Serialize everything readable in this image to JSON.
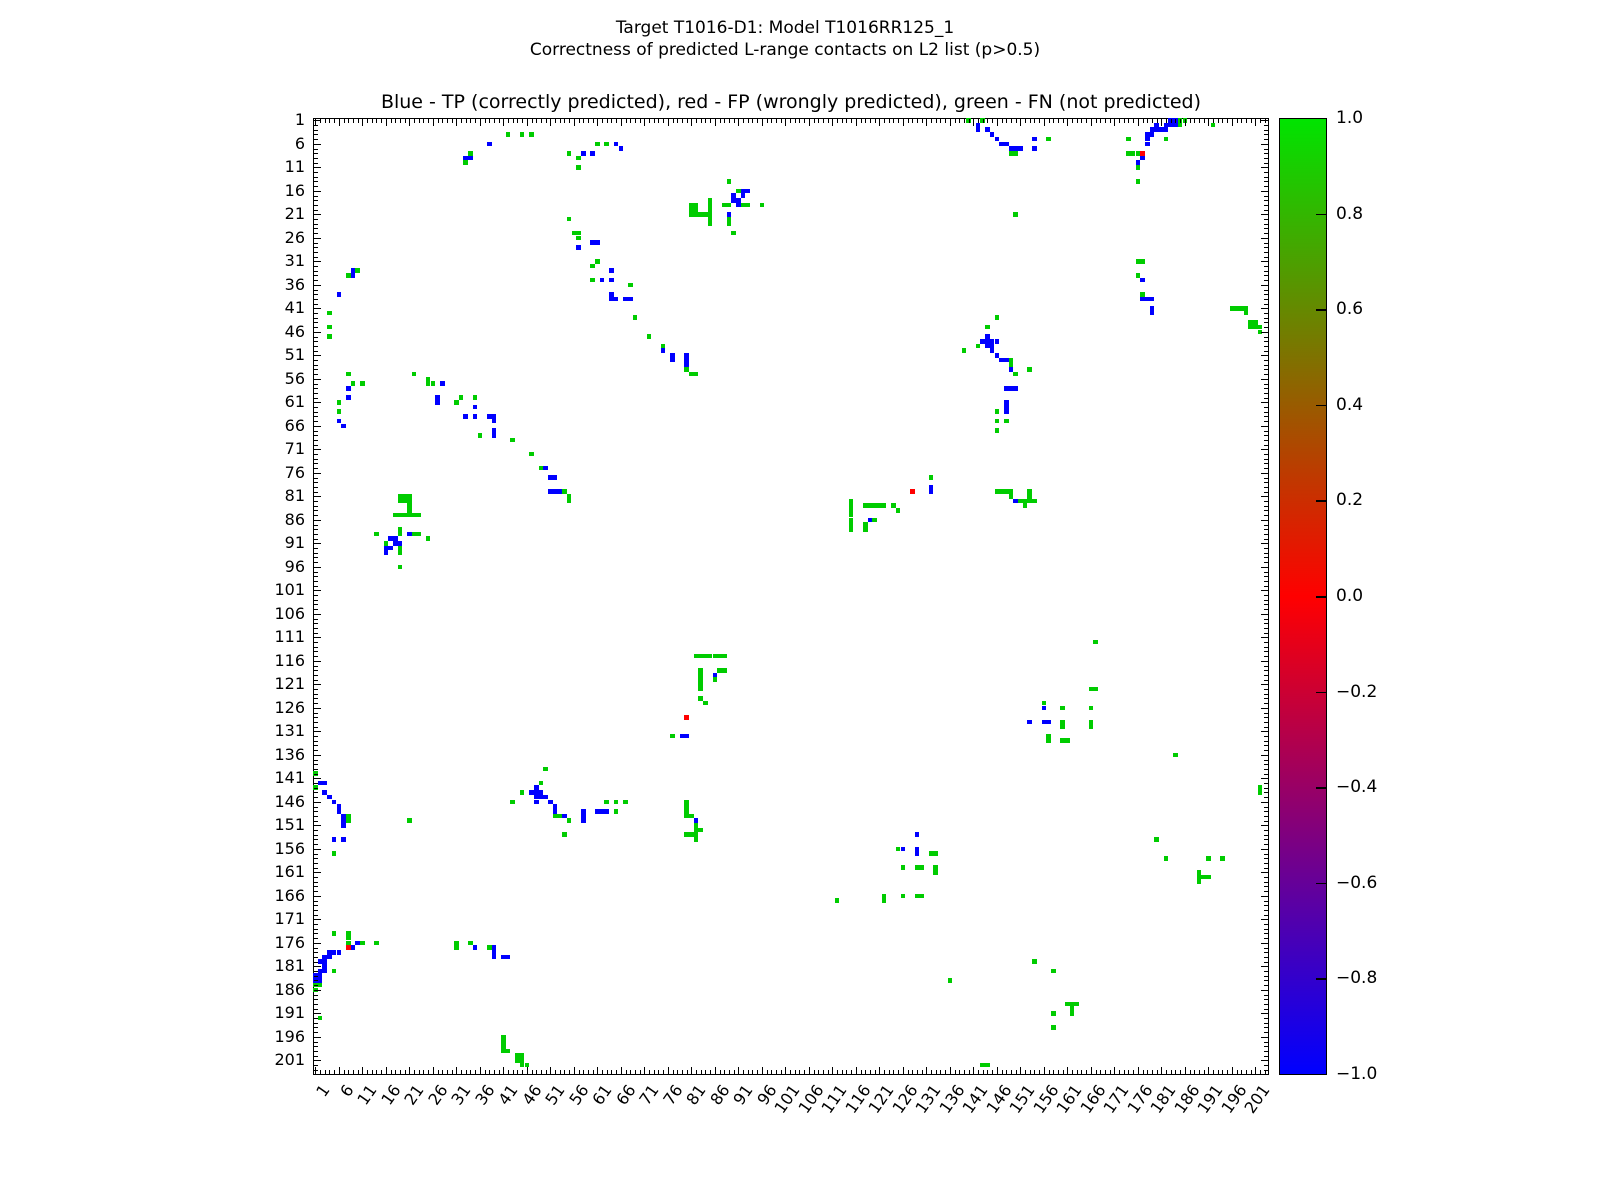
{
  "figure": {
    "title_line1": "Target T1016-D1: Model T1016RR125_1",
    "title_line2": "Correctness of predicted L-range contacts on L2 list (p>0.5)",
    "axes_title": "Blue - TP (correctly predicted), red - FP (wrongly predicted), green - FN (not predicted)"
  },
  "chart_data": {
    "type": "heatmap",
    "title": "Blue - TP (correctly predicted), red - FP (wrongly predicted), green - FN (not predicted)",
    "xlabel": "",
    "ylabel": "",
    "axis": {
      "min": 1,
      "max": 203,
      "tick_labels": [
        1,
        6,
        11,
        16,
        21,
        26,
        31,
        36,
        41,
        46,
        51,
        56,
        61,
        66,
        71,
        76,
        81,
        86,
        91,
        96,
        101,
        106,
        111,
        116,
        121,
        126,
        131,
        136,
        141,
        146,
        151,
        156,
        161,
        166,
        171,
        176,
        181,
        186,
        191,
        196,
        201
      ]
    },
    "grid": false,
    "legend": {
      "tp": {
        "label": "TP (correctly predicted)",
        "color": "#0000FF"
      },
      "fp": {
        "label": "FP (wrongly predicted)",
        "color": "#FF0000"
      },
      "fn": {
        "label": "FN (not predicted)",
        "color": "#00CC00"
      }
    },
    "colorbar": {
      "min": -1.0,
      "max": 1.0,
      "tick_labels": [
        "1.0",
        "0.8",
        "0.6",
        "0.4",
        "0.2",
        "0.0",
        "−0.2",
        "−0.4",
        "−0.6",
        "−0.8",
        "−1.0"
      ],
      "gradient_top_to_bottom": [
        "#00E400",
        "#7F7200",
        "#FF0000",
        "#7F007F",
        "#0000FF"
      ]
    },
    "symmetric": true,
    "note": "points_upper_triangle holds [col,row,class] cells with col>row; the matrix is symmetric so each point is also drawn mirrored at [row,col]. class: b=TP(blue), r=FP(red), g=FN(green)",
    "points_upper_triangle": [
      [
        140,
        1,
        "g"
      ],
      [
        143,
        1,
        "g"
      ],
      [
        142,
        2,
        "b"
      ],
      [
        142,
        3,
        "b"
      ],
      [
        144,
        3,
        "b"
      ],
      [
        145,
        4,
        "b"
      ],
      [
        146,
        5,
        "b"
      ],
      [
        147,
        6,
        "b"
      ],
      [
        148,
        6,
        "b"
      ],
      [
        149,
        7,
        "b"
      ],
      [
        150,
        7,
        "b"
      ],
      [
        151,
        7,
        "b"
      ],
      [
        149,
        8,
        "g"
      ],
      [
        150,
        8,
        "g"
      ],
      [
        154,
        5,
        "b"
      ],
      [
        154,
        7,
        "b"
      ],
      [
        157,
        5,
        "g"
      ],
      [
        150,
        21,
        "g"
      ],
      [
        183,
        1,
        "b"
      ],
      [
        184,
        1,
        "b"
      ],
      [
        185,
        1,
        "g"
      ],
      [
        186,
        1,
        "g"
      ],
      [
        180,
        2,
        "b"
      ],
      [
        182,
        2,
        "b"
      ],
      [
        183,
        2,
        "b"
      ],
      [
        184,
        2,
        "b"
      ],
      [
        185,
        2,
        "g"
      ],
      [
        192,
        2,
        "g"
      ],
      [
        179,
        3,
        "b"
      ],
      [
        180,
        3,
        "b"
      ],
      [
        181,
        3,
        "b"
      ],
      [
        182,
        3,
        "b"
      ],
      [
        178,
        4,
        "b"
      ],
      [
        179,
        4,
        "b"
      ],
      [
        174,
        5,
        "g"
      ],
      [
        178,
        5,
        "b"
      ],
      [
        182,
        5,
        "g"
      ],
      [
        178,
        6,
        "b"
      ],
      [
        177,
        8,
        "r"
      ],
      [
        174,
        8,
        "g"
      ],
      [
        175,
        8,
        "g"
      ],
      [
        176,
        8,
        "g"
      ],
      [
        177,
        9,
        "b"
      ],
      [
        176,
        10,
        "b"
      ],
      [
        176,
        11,
        "g"
      ],
      [
        176,
        14,
        "g"
      ],
      [
        42,
        4,
        "g"
      ],
      [
        45,
        4,
        "g"
      ],
      [
        47,
        4,
        "g"
      ],
      [
        34,
        8,
        "g"
      ],
      [
        33,
        9,
        "b"
      ],
      [
        34,
        9,
        "b"
      ],
      [
        33,
        10,
        "g"
      ],
      [
        38,
        6,
        "b"
      ],
      [
        55,
        8,
        "g"
      ],
      [
        57,
        9,
        "g"
      ],
      [
        57,
        11,
        "g"
      ],
      [
        61,
        6,
        "g"
      ],
      [
        63,
        6,
        "g"
      ],
      [
        58,
        8,
        "b"
      ],
      [
        60,
        8,
        "b"
      ],
      [
        65,
        6,
        "b"
      ],
      [
        66,
        7,
        "b"
      ],
      [
        55,
        22,
        "g"
      ],
      [
        56,
        25,
        "g"
      ],
      [
        57,
        25,
        "g"
      ],
      [
        57,
        26,
        "g"
      ],
      [
        57,
        28,
        "b"
      ],
      [
        60,
        27,
        "b"
      ],
      [
        61,
        27,
        "b"
      ],
      [
        61,
        31,
        "g"
      ],
      [
        60,
        32,
        "g"
      ],
      [
        64,
        33,
        "b"
      ],
      [
        60,
        35,
        "g"
      ],
      [
        62,
        35,
        "b"
      ],
      [
        64,
        35,
        "b"
      ],
      [
        64,
        38,
        "b"
      ],
      [
        64,
        39,
        "b"
      ],
      [
        65,
        39,
        "b"
      ],
      [
        68,
        36,
        "g"
      ],
      [
        67,
        39,
        "b"
      ],
      [
        68,
        39,
        "b"
      ],
      [
        69,
        43,
        "g"
      ],
      [
        72,
        47,
        "g"
      ],
      [
        75,
        49,
        "g"
      ],
      [
        75,
        50,
        "b"
      ],
      [
        77,
        51,
        "b"
      ],
      [
        77,
        52,
        "b"
      ],
      [
        80,
        51,
        "b"
      ],
      [
        80,
        52,
        "b"
      ],
      [
        80,
        53,
        "b"
      ],
      [
        80,
        54,
        "g"
      ],
      [
        81,
        55,
        "g"
      ],
      [
        82,
        55,
        "g"
      ],
      [
        89,
        14,
        "g"
      ],
      [
        91,
        16,
        "g"
      ],
      [
        81,
        19,
        "g"
      ],
      [
        81,
        20,
        "g"
      ],
      [
        81,
        21,
        "g"
      ],
      [
        82,
        19,
        "g"
      ],
      [
        82,
        20,
        "g"
      ],
      [
        82,
        21,
        "g"
      ],
      [
        83,
        21,
        "g"
      ],
      [
        84,
        21,
        "g"
      ],
      [
        85,
        18,
        "g"
      ],
      [
        85,
        19,
        "g"
      ],
      [
        85,
        20,
        "g"
      ],
      [
        85,
        21,
        "g"
      ],
      [
        85,
        22,
        "g"
      ],
      [
        85,
        23,
        "g"
      ],
      [
        88,
        19,
        "g"
      ],
      [
        89,
        19,
        "g"
      ],
      [
        89,
        22,
        "g"
      ],
      [
        89,
        23,
        "g"
      ],
      [
        90,
        25,
        "g"
      ],
      [
        92,
        19,
        "g"
      ],
      [
        93,
        19,
        "g"
      ],
      [
        96,
        19,
        "g"
      ],
      [
        89,
        21,
        "b"
      ],
      [
        90,
        17,
        "b"
      ],
      [
        90,
        18,
        "b"
      ],
      [
        91,
        18,
        "b"
      ],
      [
        91,
        19,
        "b"
      ],
      [
        92,
        16,
        "b"
      ],
      [
        92,
        17,
        "b"
      ],
      [
        93,
        16,
        "b"
      ],
      [
        115,
        82,
        "g"
      ],
      [
        115,
        83,
        "g"
      ],
      [
        115,
        84,
        "g"
      ],
      [
        115,
        85,
        "g"
      ],
      [
        115,
        86,
        "g"
      ],
      [
        115,
        87,
        "g"
      ],
      [
        115,
        88,
        "g"
      ],
      [
        118,
        83,
        "g"
      ],
      [
        119,
        83,
        "g"
      ],
      [
        120,
        83,
        "g"
      ],
      [
        121,
        83,
        "g"
      ],
      [
        122,
        83,
        "g"
      ],
      [
        124,
        83,
        "g"
      ],
      [
        125,
        84,
        "g"
      ],
      [
        120,
        86,
        "g"
      ],
      [
        118,
        87,
        "g"
      ],
      [
        118,
        88,
        "g"
      ],
      [
        132,
        77,
        "g"
      ],
      [
        119,
        86,
        "b"
      ],
      [
        132,
        79,
        "b"
      ],
      [
        132,
        80,
        "b"
      ],
      [
        128,
        80,
        "r"
      ],
      [
        146,
        80,
        "g"
      ],
      [
        147,
        80,
        "g"
      ],
      [
        148,
        80,
        "g"
      ],
      [
        149,
        80,
        "g"
      ],
      [
        149,
        81,
        "g"
      ],
      [
        151,
        82,
        "g"
      ],
      [
        152,
        82,
        "g"
      ],
      [
        152,
        83,
        "g"
      ],
      [
        153,
        80,
        "g"
      ],
      [
        153,
        81,
        "g"
      ],
      [
        153,
        82,
        "g"
      ],
      [
        154,
        82,
        "g"
      ],
      [
        150,
        82,
        "b"
      ],
      [
        146,
        43,
        "g"
      ],
      [
        144,
        45,
        "g"
      ],
      [
        142,
        49,
        "g"
      ],
      [
        139,
        50,
        "g"
      ],
      [
        149,
        52,
        "g"
      ],
      [
        149,
        53,
        "g"
      ],
      [
        153,
        54,
        "g"
      ],
      [
        150,
        55,
        "g"
      ],
      [
        146,
        63,
        "g"
      ],
      [
        146,
        65,
        "g"
      ],
      [
        148,
        65,
        "g"
      ],
      [
        146,
        67,
        "g"
      ],
      [
        144,
        47,
        "b"
      ],
      [
        143,
        48,
        "b"
      ],
      [
        144,
        48,
        "b"
      ],
      [
        145,
        48,
        "b"
      ],
      [
        146,
        48,
        "b"
      ],
      [
        144,
        49,
        "b"
      ],
      [
        145,
        49,
        "b"
      ],
      [
        145,
        50,
        "b"
      ],
      [
        146,
        51,
        "b"
      ],
      [
        147,
        52,
        "b"
      ],
      [
        148,
        52,
        "b"
      ],
      [
        149,
        54,
        "b"
      ],
      [
        148,
        58,
        "b"
      ],
      [
        149,
        58,
        "b"
      ],
      [
        150,
        58,
        "b"
      ],
      [
        148,
        61,
        "b"
      ],
      [
        148,
        62,
        "b"
      ],
      [
        148,
        63,
        "b"
      ],
      [
        176,
        31,
        "g"
      ],
      [
        177,
        31,
        "g"
      ],
      [
        176,
        34,
        "g"
      ],
      [
        177,
        38,
        "g"
      ],
      [
        177,
        35,
        "b"
      ],
      [
        177,
        39,
        "b"
      ],
      [
        178,
        39,
        "b"
      ],
      [
        179,
        39,
        "b"
      ],
      [
        179,
        41,
        "b"
      ],
      [
        179,
        42,
        "b"
      ],
      [
        167,
        112,
        "g"
      ],
      [
        166,
        122,
        "g"
      ],
      [
        167,
        122,
        "g"
      ],
      [
        156,
        125,
        "g"
      ],
      [
        160,
        126,
        "g"
      ],
      [
        166,
        126,
        "g"
      ],
      [
        160,
        129,
        "g"
      ],
      [
        166,
        129,
        "g"
      ],
      [
        160,
        130,
        "g"
      ],
      [
        166,
        130,
        "g"
      ],
      [
        157,
        132,
        "g"
      ],
      [
        157,
        133,
        "g"
      ],
      [
        160,
        133,
        "g"
      ],
      [
        161,
        133,
        "g"
      ],
      [
        156,
        126,
        "b"
      ],
      [
        153,
        129,
        "b"
      ],
      [
        156,
        129,
        "b"
      ],
      [
        157,
        129,
        "b"
      ],
      [
        184,
        136,
        "g"
      ],
      [
        180,
        154,
        "g"
      ],
      [
        182,
        158,
        "g"
      ],
      [
        191,
        158,
        "g"
      ],
      [
        194,
        158,
        "g"
      ],
      [
        189,
        161,
        "g"
      ],
      [
        189,
        162,
        "g"
      ],
      [
        189,
        163,
        "g"
      ],
      [
        190,
        162,
        "g"
      ],
      [
        191,
        162,
        "g"
      ],
      [
        196,
        41,
        "g"
      ],
      [
        197,
        41,
        "g"
      ],
      [
        198,
        41,
        "g"
      ],
      [
        199,
        41,
        "g"
      ],
      [
        199,
        42,
        "g"
      ],
      [
        200,
        44,
        "g"
      ],
      [
        200,
        45,
        "g"
      ],
      [
        201,
        44,
        "g"
      ],
      [
        201,
        45,
        "g"
      ],
      [
        202,
        45,
        "g"
      ],
      [
        202,
        46,
        "g"
      ],
      [
        202,
        143,
        "g"
      ],
      [
        202,
        144,
        "g"
      ]
    ]
  }
}
